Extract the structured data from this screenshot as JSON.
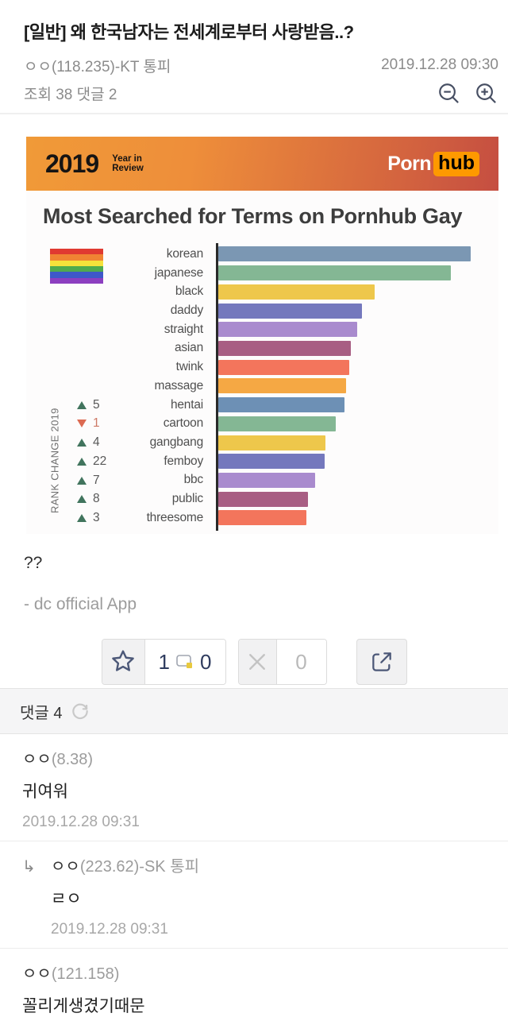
{
  "post": {
    "title": "[일반] 왜 한국남자는 전세계로부터 사랑받음..?",
    "author": "ㅇㅇ(118.235)-KT 통피",
    "date": "2019.12.28 09:30",
    "views_comments": "조회 38 댓글 2",
    "body": "??",
    "app_signature": "- dc official App"
  },
  "embed": {
    "banner": {
      "year": "2019",
      "year_sub_line1": "Year in",
      "year_sub_line2": "Review",
      "brand_porn": "Porn",
      "brand_hub": "hub",
      "hub_bg": "#fe9900",
      "gradient_left": "#f09a38",
      "gradient_right": "#c54e41"
    },
    "pride_flag_colors": [
      "#e03a31",
      "#f08433",
      "#f5e23b",
      "#4faa4e",
      "#3e58c9",
      "#8c3fc0"
    ]
  },
  "chart_data": {
    "type": "bar",
    "orientation": "horizontal",
    "title": "Most Searched for Terms on Pornhub Gay",
    "categories": [
      "korean",
      "japanese",
      "black",
      "daddy",
      "straight",
      "asian",
      "twink",
      "massage",
      "hentai",
      "cartoon",
      "gangbang",
      "femboy",
      "bbc",
      "public",
      "threesome"
    ],
    "values": [
      100,
      92,
      62,
      57,
      55,
      52.5,
      52,
      50.5,
      50,
      46.5,
      42.5,
      42,
      38.5,
      35.5,
      35
    ],
    "values_note": "relative bar length, korean = 100; axis unlabeled",
    "bar_colors": [
      "#7b97b3",
      "#84b794",
      "#eec74b",
      "#7478bd",
      "#a98bce",
      "#a85e83",
      "#f3755c",
      "#f5a844",
      "#6d90b5",
      "#84b794",
      "#eec74b",
      "#7478bd",
      "#a98bce",
      "#a85e83",
      "#f3755c"
    ],
    "rank_axis_label": "RANK CHANGE 2019",
    "rank_changes": [
      {
        "category": "hentai",
        "direction": "up",
        "value": "5"
      },
      {
        "category": "cartoon",
        "direction": "down",
        "value": "1"
      },
      {
        "category": "gangbang",
        "direction": "up",
        "value": "4"
      },
      {
        "category": "femboy",
        "direction": "up",
        "value": "22"
      },
      {
        "category": "bbc",
        "direction": "up",
        "value": "7"
      },
      {
        "category": "public",
        "direction": "up",
        "value": "8"
      },
      {
        "category": "threesome",
        "direction": "up",
        "value": "3"
      }
    ],
    "up_color": "#41745d",
    "down_color": "#dc6a52",
    "legend_position": "none",
    "grid": false
  },
  "vote": {
    "upvote_count": "1",
    "dica_count": "0",
    "downvote_count": "0"
  },
  "comments": {
    "header": "댓글 4",
    "items": [
      {
        "author_nick": "ㅇㅇ",
        "author_suffix": "(8.38)",
        "text": "귀여워",
        "date": "2019.12.28 09:31",
        "reply": false
      },
      {
        "author_nick": "ㅇㅇ",
        "author_suffix": "(223.62)-SK 통피",
        "text": "ㄹㅇ",
        "date": "2019.12.28 09:31",
        "reply": true
      },
      {
        "author_nick": "ㅇㅇ",
        "author_suffix": "(121.158)",
        "text": "꼴리게생겼기때문",
        "date": "",
        "reply": false
      }
    ]
  },
  "icons": {
    "reply_arrow_glyph": "↳",
    "accent_navy": "#4c5878",
    "icon_gray": "#c9c9c9",
    "zoom_icon_color": "#474f63"
  }
}
